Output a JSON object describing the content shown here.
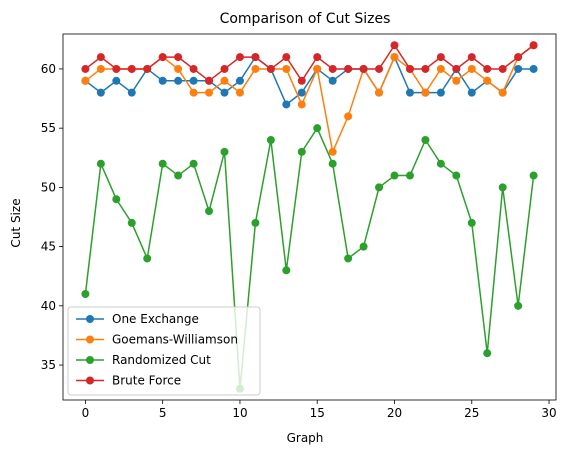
{
  "chart_data": {
    "type": "line",
    "title": "Comparison of Cut Sizes",
    "xlabel": "Graph",
    "ylabel": "Cut Size",
    "xlim": [
      -1.45,
      30.45
    ],
    "ylim": [
      32.05,
      62.95
    ],
    "xticks": [
      0,
      5,
      10,
      15,
      20,
      25,
      30
    ],
    "yticks": [
      35,
      40,
      45,
      50,
      55,
      60
    ],
    "grid": false,
    "legend_position": "lower-left",
    "x": [
      0,
      1,
      2,
      3,
      4,
      5,
      6,
      7,
      8,
      9,
      10,
      11,
      12,
      13,
      14,
      15,
      16,
      17,
      18,
      19,
      20,
      21,
      22,
      23,
      24,
      25,
      26,
      27,
      28,
      29
    ],
    "series": [
      {
        "name": "One Exchange",
        "color": "#1f77b4",
        "values": [
          59,
          58,
          59,
          58,
          60,
          59,
          59,
          59,
          59,
          58,
          59,
          61,
          60,
          57,
          58,
          60,
          59,
          60,
          60,
          58,
          61,
          58,
          58,
          58,
          60,
          58,
          59,
          58,
          60,
          60
        ]
      },
      {
        "name": "Goemans-Williamson",
        "color": "#ff7f0e",
        "values": [
          59,
          60,
          60,
          60,
          60,
          61,
          60,
          58,
          58,
          59,
          58,
          60,
          60,
          60,
          57,
          60,
          53,
          56,
          60,
          58,
          61,
          60,
          58,
          60,
          59,
          60,
          59,
          58,
          61,
          62
        ]
      },
      {
        "name": "Randomized Cut",
        "color": "#2ca02c",
        "values": [
          41,
          52,
          49,
          47,
          44,
          52,
          51,
          52,
          48,
          53,
          33,
          47,
          54,
          43,
          53,
          55,
          52,
          44,
          45,
          50,
          51,
          51,
          54,
          52,
          51,
          47,
          36,
          50,
          40,
          51
        ]
      },
      {
        "name": "Brute Force",
        "color": "#d62728",
        "values": [
          60,
          61,
          60,
          60,
          60,
          61,
          61,
          60,
          59,
          60,
          61,
          61,
          60,
          61,
          59,
          61,
          60,
          60,
          60,
          60,
          62,
          60,
          60,
          61,
          60,
          61,
          60,
          60,
          61,
          62
        ]
      }
    ]
  }
}
